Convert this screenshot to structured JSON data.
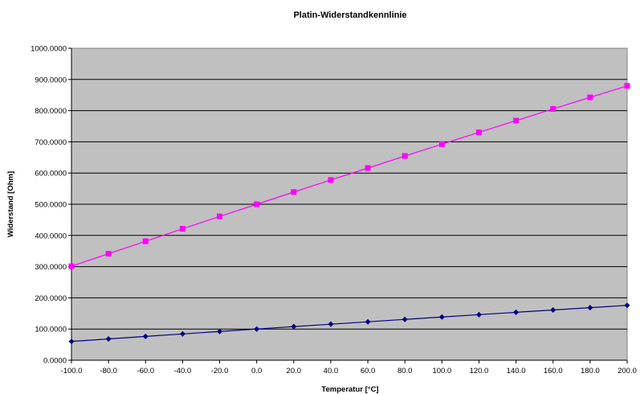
{
  "chart_data": {
    "type": "line",
    "title": "Platin-Widerstandkennlinie",
    "xlabel": "Temperatur [°C]",
    "ylabel": "Widerstand [Ohm]",
    "xlim": [
      -100,
      200
    ],
    "ylim": [
      0,
      1000
    ],
    "grid": true,
    "x": [
      -100,
      -80,
      -60,
      -40,
      -20,
      0,
      20,
      40,
      60,
      80,
      100,
      120,
      140,
      160,
      180,
      200
    ],
    "x_tick_labels": [
      "-100.0",
      "-80.0",
      "-60.0",
      "-40.0",
      "-20.0",
      "0.0",
      "20.0",
      "40.0",
      "60.0",
      "80.0",
      "100.0",
      "120.0",
      "140.0",
      "160.0",
      "180.0",
      "200.0"
    ],
    "y_ticks": [
      0,
      100,
      200,
      300,
      400,
      500,
      600,
      700,
      800,
      900,
      1000
    ],
    "y_tick_labels": [
      "0.0000",
      "100.0000",
      "200.0000",
      "300.0000",
      "400.0000",
      "500.0000",
      "600.0000",
      "700.0000",
      "800.0000",
      "900.0000",
      "1000.0000"
    ],
    "series": [
      {
        "marker": "diamond",
        "color": "#000080",
        "values": [
          60.3,
          68.3,
          76.3,
          84.3,
          92.2,
          100.0,
          107.8,
          115.5,
          123.2,
          130.9,
          138.5,
          146.1,
          153.6,
          161.1,
          168.5,
          175.9
        ]
      },
      {
        "marker": "square",
        "color": "#ff00ff",
        "values": [
          301.3,
          341.4,
          381.3,
          421.3,
          461.0,
          500.0,
          539.0,
          577.7,
          616.0,
          654.6,
          692.5,
          730.5,
          768.0,
          805.5,
          842.6,
          879.4
        ]
      }
    ],
    "plot_background": "#c0c0c0"
  }
}
